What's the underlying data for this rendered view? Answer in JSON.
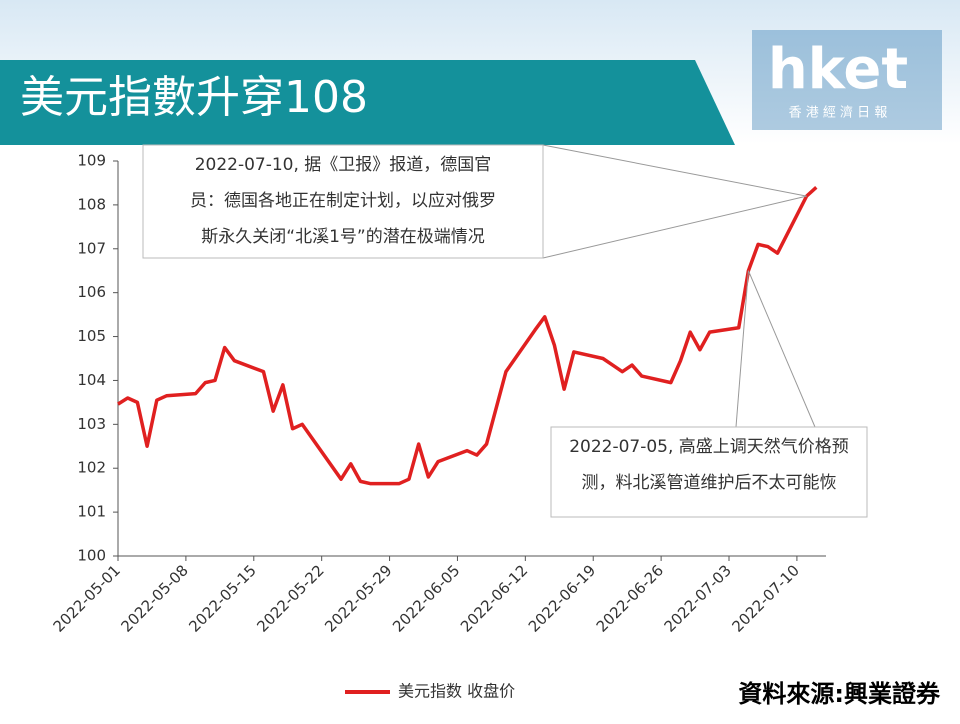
{
  "header": {
    "title": "美元指數升穿108",
    "logo": "hket",
    "logo_sub": "香 港 經 濟 日 報"
  },
  "chart_data": {
    "type": "line",
    "x": [
      "2022-05-01",
      "2022-05-02",
      "2022-05-03",
      "2022-05-04",
      "2022-05-05",
      "2022-05-06",
      "2022-05-09",
      "2022-05-10",
      "2022-05-11",
      "2022-05-12",
      "2022-05-13",
      "2022-05-16",
      "2022-05-17",
      "2022-05-18",
      "2022-05-19",
      "2022-05-20",
      "2022-05-24",
      "2022-05-25",
      "2022-05-26",
      "2022-05-27",
      "2022-05-30",
      "2022-05-31",
      "2022-06-01",
      "2022-06-02",
      "2022-06-03",
      "2022-06-06",
      "2022-06-07",
      "2022-06-08",
      "2022-06-10",
      "2022-06-13",
      "2022-06-14",
      "2022-06-15",
      "2022-06-16",
      "2022-06-17",
      "2022-06-20",
      "2022-06-21",
      "2022-06-22",
      "2022-06-23",
      "2022-06-24",
      "2022-06-27",
      "2022-06-28",
      "2022-06-29",
      "2022-06-30",
      "2022-07-01",
      "2022-07-04",
      "2022-07-05",
      "2022-07-06",
      "2022-07-07",
      "2022-07-08",
      "2022-07-11",
      "2022-07-12"
    ],
    "series": [
      {
        "name": "美元指数 收盘价",
        "color": "#e02020",
        "values": [
          103.46,
          103.6,
          103.5,
          102.5,
          103.55,
          103.65,
          103.7,
          103.95,
          104.0,
          104.75,
          104.45,
          104.2,
          103.3,
          103.9,
          102.9,
          103.0,
          101.75,
          102.1,
          101.7,
          101.65,
          101.65,
          101.75,
          102.55,
          101.8,
          102.15,
          102.4,
          102.3,
          102.55,
          104.2,
          105.15,
          105.45,
          104.8,
          103.8,
          104.65,
          104.5,
          104.35,
          104.2,
          104.35,
          104.1,
          103.95,
          104.45,
          105.1,
          104.7,
          105.1,
          105.2,
          106.5,
          107.1,
          107.05,
          106.9,
          108.2,
          108.4
        ]
      }
    ],
    "xlim": [
      "2022-05-01",
      "2022-07-13"
    ],
    "xticks": [
      "2022-05-01",
      "2022-05-08",
      "2022-05-15",
      "2022-05-22",
      "2022-05-29",
      "2022-06-05",
      "2022-06-12",
      "2022-06-19",
      "2022-06-26",
      "2022-07-03",
      "2022-07-10"
    ],
    "ylim": [
      100,
      109
    ],
    "yticks": [
      100,
      101,
      102,
      103,
      104,
      105,
      106,
      107,
      108,
      109
    ],
    "annotations": [
      {
        "lines": [
          "2022-07-10, 据《卫报》报道，德国官",
          "员：德国各地正在制定计划，以应对俄罗",
          "斯永久关闭“北溪1号”的潜在极端情况"
        ]
      },
      {
        "lines": [
          "2022-07-05, 高盛上调天然气价格预",
          "测，料北溪管道维护后不太可能恢"
        ]
      }
    ],
    "source": "資料來源:興業證券"
  }
}
